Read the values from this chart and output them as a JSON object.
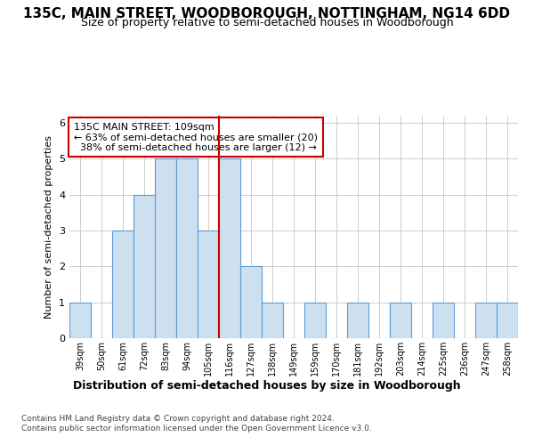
{
  "title_line1": "135C, MAIN STREET, WOODBOROUGH, NOTTINGHAM, NG14 6DD",
  "title_line2": "Size of property relative to semi-detached houses in Woodborough",
  "xlabel": "Distribution of semi-detached houses by size in Woodborough",
  "ylabel": "Number of semi-detached properties",
  "footer1": "Contains HM Land Registry data © Crown copyright and database right 2024.",
  "footer2": "Contains public sector information licensed under the Open Government Licence v3.0.",
  "categories": [
    "39sqm",
    "50sqm",
    "61sqm",
    "72sqm",
    "83sqm",
    "94sqm",
    "105sqm",
    "116sqm",
    "127sqm",
    "138sqm",
    "149sqm",
    "159sqm",
    "170sqm",
    "181sqm",
    "192sqm",
    "203sqm",
    "214sqm",
    "225sqm",
    "236sqm",
    "247sqm",
    "258sqm"
  ],
  "values": [
    1,
    0,
    3,
    4,
    5,
    5,
    3,
    5,
    2,
    1,
    0,
    1,
    0,
    1,
    0,
    1,
    0,
    1,
    0,
    1,
    1
  ],
  "bar_color": "#cce0f0",
  "bar_edge_color": "#5b9bd5",
  "property_bin_index": 6,
  "redline_label": "135C MAIN STREET: 109sqm",
  "pct_smaller": 63,
  "pct_smaller_count": 20,
  "pct_larger": 38,
  "pct_larger_count": 12,
  "annotation_box_color": "#ffffff",
  "annotation_box_edge": "#cc0000",
  "redline_color": "#cc0000",
  "ylim": [
    0,
    6.2
  ],
  "yticks": [
    0,
    1,
    2,
    3,
    4,
    5,
    6
  ],
  "grid_color": "#cccccc",
  "background_color": "#ffffff",
  "title_fontsize": 11,
  "subtitle_fontsize": 9,
  "ylabel_fontsize": 8,
  "xlabel_fontsize": 9,
  "tick_fontsize": 7,
  "footer_fontsize": 6.5,
  "ann_fontsize": 8
}
